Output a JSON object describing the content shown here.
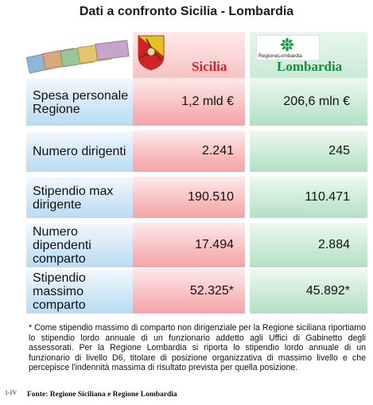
{
  "title": "Dati a confronto Sicilia - Lombardia",
  "header": {
    "col1": "Sicilia",
    "col2": "Lombardia",
    "logo_text": "RegioneLombardia"
  },
  "rows": [
    {
      "label": "Spesa personale Regione",
      "sicilia": "1,2 mld €",
      "lombardia": "206,6 mln €"
    },
    {
      "label": "Numero dirigenti",
      "sicilia": "2.241",
      "lombardia": "245"
    },
    {
      "label": "Stipendio max dirigente",
      "sicilia": "190.510",
      "lombardia": "110.471"
    },
    {
      "label": "Numero dipendenti comparto",
      "sicilia": "17.494",
      "lombardia": "2.884"
    },
    {
      "label": "Stipendio massimo comparto",
      "sicilia": "52.325*",
      "lombardia": "45.892*"
    }
  ],
  "footnote": "* Come stipendio massimo di comparto non dirigenziale per la Regione siciliana riportiamo lo stipendio lordo annuale di un funzionario addetto agli Uffici di Gabinetto degli assessorati. Per la Regione Lombardia si riporta lo stipendio lordo annuale di un funzionario di livello D6, titolare di posizione organizzativa di massimo livello e che percepisce l'indennità massima di risultato prevista per quella posizione.",
  "page_number": "1-IV",
  "source": "Fonte: Regione Siciliana e Regione Lombardia"
}
